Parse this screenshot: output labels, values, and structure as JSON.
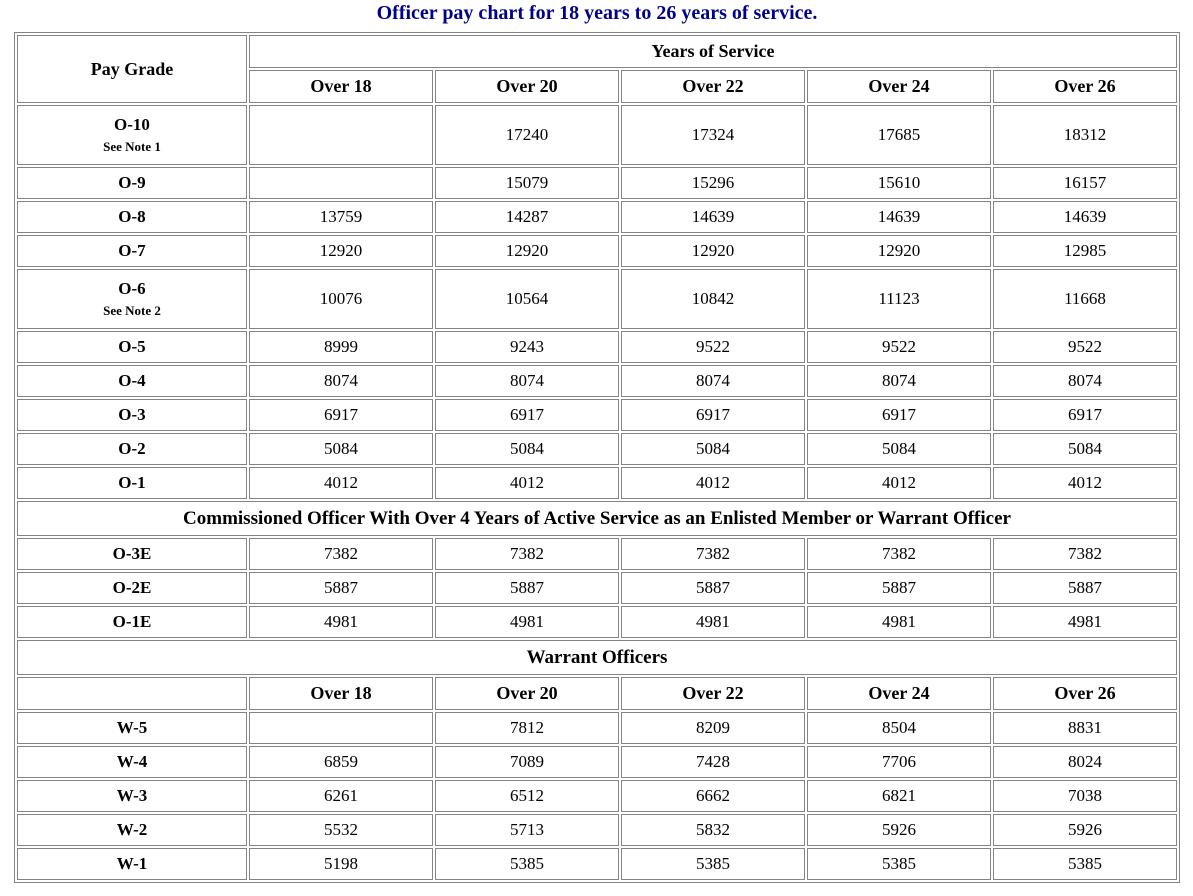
{
  "title": "Officer pay chart for 18 years to 26 years of service.",
  "colors": {
    "title_text": "#00008B",
    "table_border": "#848484",
    "body_text": "#000000",
    "background": "#FFFFFF"
  },
  "table": {
    "pay_grade_header": "Pay Grade",
    "years_of_service_header": "Years of Service",
    "service_columns": [
      "Over 18",
      "Over 20",
      "Over 22",
      "Over 24",
      "Over 26"
    ],
    "officer_rows": [
      {
        "grade": "O-10",
        "note": "See Note 1",
        "values": [
          "",
          "17240",
          "17324",
          "17685",
          "18312"
        ]
      },
      {
        "grade": "O-9",
        "note": "",
        "values": [
          "",
          "15079",
          "15296",
          "15610",
          "16157"
        ]
      },
      {
        "grade": "O-8",
        "note": "",
        "values": [
          "13759",
          "14287",
          "14639",
          "14639",
          "14639"
        ]
      },
      {
        "grade": "O-7",
        "note": "",
        "values": [
          "12920",
          "12920",
          "12920",
          "12920",
          "12985"
        ]
      },
      {
        "grade": "O-6",
        "note": "See Note 2",
        "values": [
          "10076",
          "10564",
          "10842",
          "11123",
          "11668"
        ]
      },
      {
        "grade": "O-5",
        "note": "",
        "values": [
          "8999",
          "9243",
          "9522",
          "9522",
          "9522"
        ]
      },
      {
        "grade": "O-4",
        "note": "",
        "values": [
          "8074",
          "8074",
          "8074",
          "8074",
          "8074"
        ]
      },
      {
        "grade": "O-3",
        "note": "",
        "values": [
          "6917",
          "6917",
          "6917",
          "6917",
          "6917"
        ]
      },
      {
        "grade": "O-2",
        "note": "",
        "values": [
          "5084",
          "5084",
          "5084",
          "5084",
          "5084"
        ]
      },
      {
        "grade": "O-1",
        "note": "",
        "values": [
          "4012",
          "4012",
          "4012",
          "4012",
          "4012"
        ]
      }
    ],
    "commissioned_section_header": "Commissioned Officer With Over 4 Years of Active Service as an Enlisted Member or Warrant Officer",
    "commissioned_rows": [
      {
        "grade": "O-3E",
        "values": [
          "7382",
          "7382",
          "7382",
          "7382",
          "7382"
        ]
      },
      {
        "grade": "O-2E",
        "values": [
          "5887",
          "5887",
          "5887",
          "5887",
          "5887"
        ]
      },
      {
        "grade": "O-1E",
        "values": [
          "4981",
          "4981",
          "4981",
          "4981",
          "4981"
        ]
      }
    ],
    "warrant_section_header": "Warrant Officers",
    "warrant_corner": "",
    "warrant_columns": [
      "Over 18",
      "Over 20",
      "Over 22",
      "Over 24",
      "Over 26"
    ],
    "warrant_rows": [
      {
        "grade": "W-5",
        "values": [
          "",
          "7812",
          "8209",
          "8504",
          "8831"
        ]
      },
      {
        "grade": "W-4",
        "values": [
          "6859",
          "7089",
          "7428",
          "7706",
          "8024"
        ]
      },
      {
        "grade": "W-3",
        "values": [
          "6261",
          "6512",
          "6662",
          "6821",
          "7038"
        ]
      },
      {
        "grade": "W-2",
        "values": [
          "5532",
          "5713",
          "5832",
          "5926",
          "5926"
        ]
      },
      {
        "grade": "W-1",
        "values": [
          "5198",
          "5385",
          "5385",
          "5385",
          "5385"
        ]
      }
    ]
  }
}
